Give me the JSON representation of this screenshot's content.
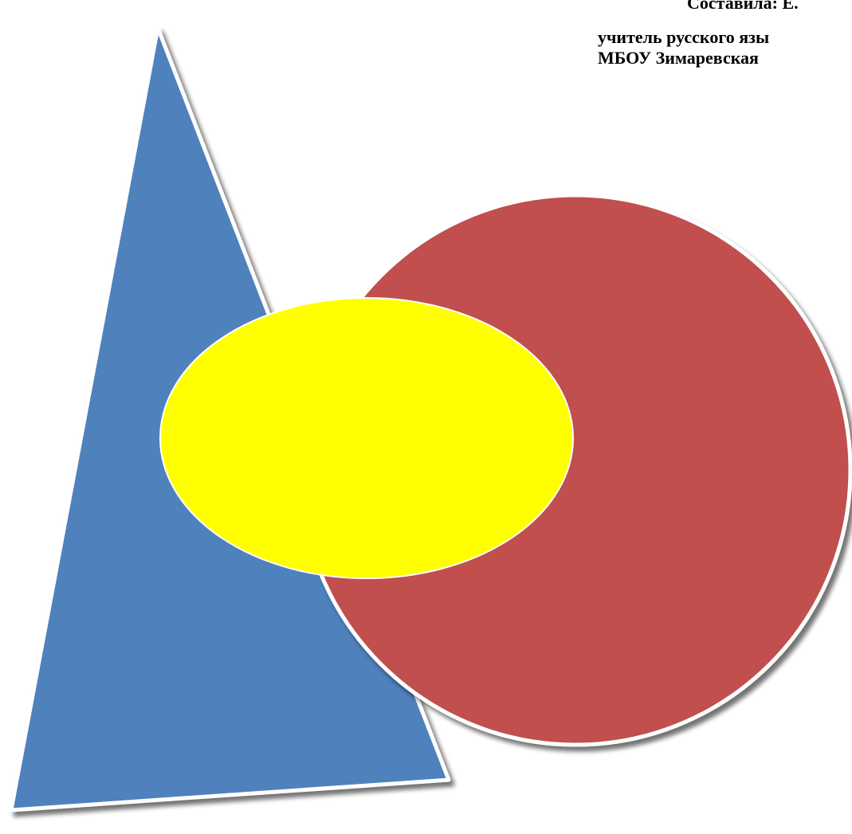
{
  "author": {
    "line_1": "Составила: Е.",
    "line_2": "учитель русского язы",
    "line_3": "МБОУ Зимаревская"
  },
  "colors": {
    "triangle_fill": "#4f81bd",
    "circle_fill": "#c0504d",
    "ellipse_fill": "#ffff00",
    "outline": "#ffffff",
    "shadow": "#7f8fa6"
  }
}
